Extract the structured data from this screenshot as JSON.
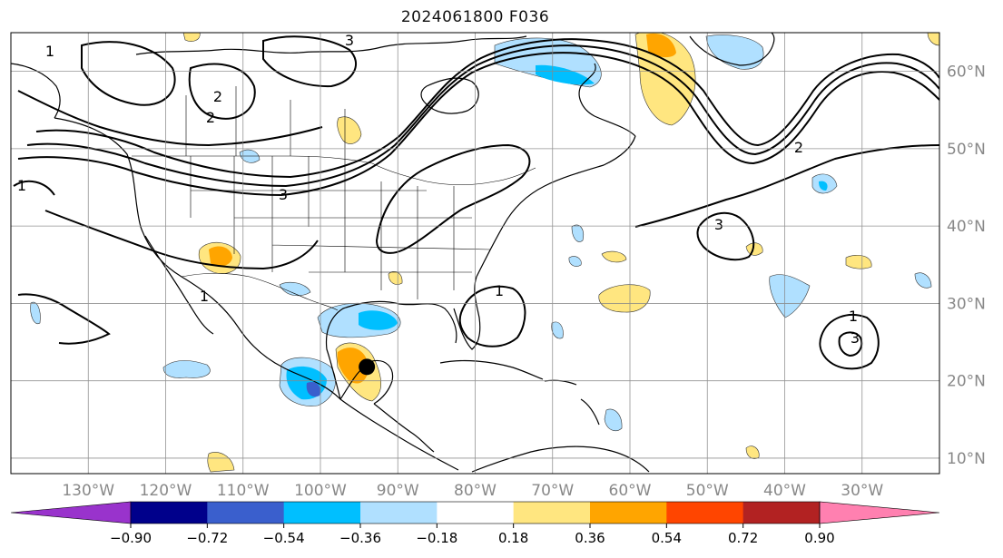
{
  "title": "2024061800 F036",
  "map": {
    "projection": "plate-carree",
    "extent_lon": [
      -140,
      -20
    ],
    "extent_lat": [
      8,
      65
    ],
    "gridlines": true,
    "lon_labels": [
      "130°W",
      "120°W",
      "110°W",
      "100°W",
      "90°W",
      "80°W",
      "70°W",
      "60°W",
      "50°W",
      "40°W",
      "30°W"
    ],
    "lat_labels": [
      "60°N",
      "50°N",
      "40°N",
      "30°N",
      "20°N",
      "10°N"
    ],
    "contour_labels": [
      "1",
      "2",
      "3",
      "1",
      "2",
      "1",
      "3",
      "1",
      "3",
      "1",
      "2",
      "3"
    ],
    "marker": {
      "lon": -94,
      "lat": 21.8,
      "color": "#000000"
    }
  },
  "colorbar": {
    "ticks": [
      "−0.90",
      "−0.72",
      "−0.54",
      "−0.36",
      "−0.18",
      "0.18",
      "0.36",
      "0.54",
      "0.72",
      "0.90"
    ],
    "colors": [
      "#9933cc",
      "#00008b",
      "#3a5fcd",
      "#00bfff",
      "#b0e0ff",
      "#ffffff",
      "#ffe680",
      "#ffa500",
      "#ff4500",
      "#b22222",
      "#ff80b0"
    ],
    "extend": "both"
  }
}
